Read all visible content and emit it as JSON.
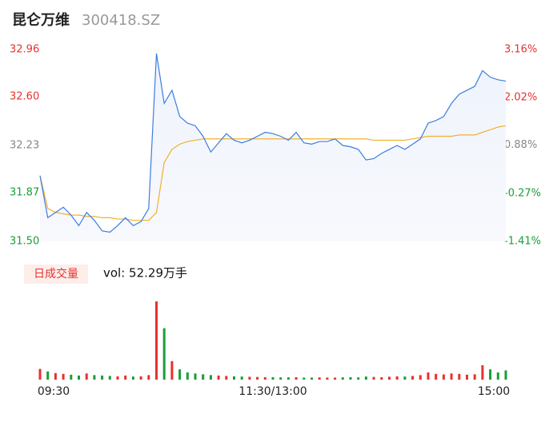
{
  "header": {
    "name": "昆仑万维",
    "code": "300418.SZ"
  },
  "chart_data": [
    {
      "type": "line",
      "x": [
        0,
        4,
        8,
        12,
        16,
        20,
        24,
        28,
        32,
        36,
        40,
        44,
        48,
        52,
        56,
        60,
        64,
        68,
        72,
        76,
        80,
        84,
        88,
        92,
        96,
        100,
        104,
        108,
        112,
        116,
        120,
        124,
        128,
        132,
        136,
        140,
        144,
        148,
        152,
        156,
        160,
        164,
        168,
        172,
        176,
        180,
        184,
        188,
        192,
        196,
        200,
        204,
        208,
        212,
        216,
        220,
        224,
        228,
        232,
        236,
        240
      ],
      "xlim": [
        0,
        240
      ],
      "xticks": [
        {
          "value": 0,
          "label": "09:30"
        },
        {
          "value": 120,
          "label": "11:30/13:00"
        },
        {
          "value": 240,
          "label": "15:00"
        }
      ],
      "ylim": [
        31.5,
        32.96
      ],
      "yticks": [
        {
          "value": 32.96,
          "label": "32.96"
        },
        {
          "value": 32.6,
          "label": "32.60"
        },
        32.23,
        31.87,
        {
          "value": 31.5,
          "label": "31.50"
        }
      ],
      "ytick_colors": [
        "#e8312f",
        "#e8312f",
        "#888888",
        "#1a9e3a",
        "#1a9e3a"
      ],
      "y2lim": [
        -1.41,
        3.16
      ],
      "y2ticks": [
        {
          "value": 3.16,
          "label": "3.16%"
        },
        {
          "value": 2.02,
          "label": "2.02%"
        },
        {
          "value": 0.88,
          "label": "0.88%"
        },
        {
          "value": -0.27,
          "label": "-0.27%"
        },
        {
          "value": -1.41,
          "label": "-1.41%"
        }
      ],
      "series": [
        {
          "name": "price",
          "color": "#3b7de0",
          "values": [
            32.0,
            31.68,
            31.72,
            31.76,
            31.7,
            31.62,
            31.72,
            31.66,
            31.58,
            31.57,
            31.62,
            31.68,
            31.62,
            31.65,
            31.75,
            32.93,
            32.55,
            32.65,
            32.45,
            32.4,
            32.38,
            32.3,
            32.18,
            32.25,
            32.32,
            32.27,
            32.25,
            32.27,
            32.3,
            32.33,
            32.32,
            32.3,
            32.27,
            32.33,
            32.25,
            32.24,
            32.26,
            32.26,
            32.28,
            32.23,
            32.22,
            32.2,
            32.12,
            32.13,
            32.17,
            32.2,
            32.23,
            32.2,
            32.24,
            32.28,
            32.4,
            32.42,
            32.45,
            32.55,
            32.62,
            32.65,
            32.68,
            32.8,
            32.75,
            32.73,
            32.72
          ]
        },
        {
          "name": "average",
          "color": "#f0b030",
          "values": [
            32.0,
            31.75,
            31.72,
            31.71,
            31.7,
            31.7,
            31.69,
            31.69,
            31.68,
            31.68,
            31.67,
            31.67,
            31.66,
            31.66,
            31.66,
            31.72,
            32.1,
            32.2,
            32.24,
            32.26,
            32.27,
            32.28,
            32.28,
            32.28,
            32.28,
            32.28,
            32.28,
            32.28,
            32.28,
            32.28,
            32.28,
            32.28,
            32.28,
            32.28,
            32.28,
            32.28,
            32.28,
            32.28,
            32.28,
            32.28,
            32.28,
            32.28,
            32.28,
            32.27,
            32.27,
            32.27,
            32.27,
            32.27,
            32.28,
            32.29,
            32.3,
            32.3,
            32.3,
            32.3,
            32.31,
            32.31,
            32.31,
            32.33,
            32.35,
            32.37,
            32.38
          ]
        }
      ]
    },
    {
      "type": "bar",
      "title": "日成交量",
      "subtitle": "vol: 52.29万手",
      "up_color": "#e8312f",
      "down_color": "#1a9e3a",
      "ylim": [
        0,
        40000
      ],
      "values": [
        5200,
        4000,
        3200,
        2800,
        2400,
        2000,
        3000,
        2200,
        2000,
        1800,
        1600,
        2000,
        1500,
        1600,
        2200,
        38000,
        25000,
        9000,
        5000,
        3500,
        3000,
        2600,
        2200,
        2000,
        1800,
        1600,
        1500,
        1400,
        1300,
        1200,
        1200,
        1100,
        1100,
        1200,
        1000,
        1000,
        1100,
        1000,
        1000,
        1100,
        1200,
        1100,
        1500,
        1300,
        1200,
        1400,
        1600,
        1500,
        1800,
        2200,
        3500,
        2800,
        2500,
        3000,
        2800,
        2400,
        2600,
        7000,
        5000,
        3500,
        4500
      ]
    }
  ]
}
